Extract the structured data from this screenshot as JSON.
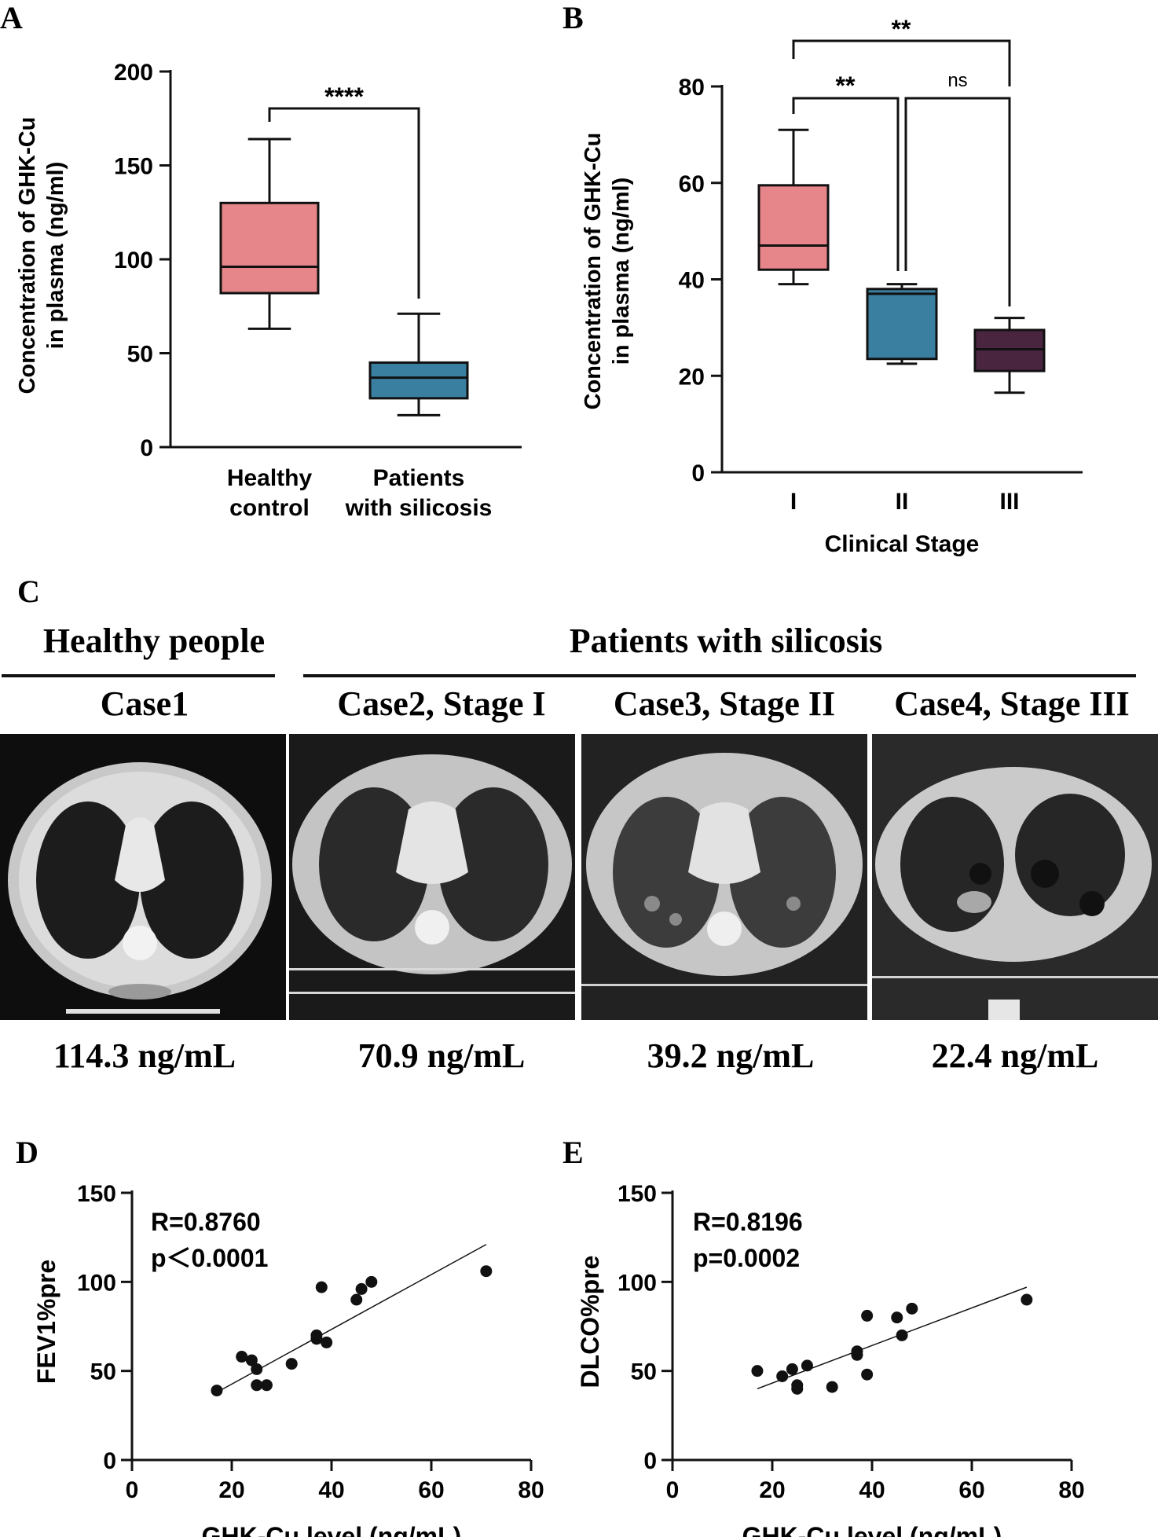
{
  "panels": {
    "A": {
      "letter": "A",
      "chart_data": {
        "type": "box",
        "ylabel_line1": "Concentration of GHK-Cu",
        "ylabel_line2": "in plasma (ng/ml)",
        "ylim": [
          0,
          200
        ],
        "ticks": [
          "0",
          "50",
          "100",
          "150",
          "200"
        ],
        "boxes": [
          {
            "label_line1": "Healthy",
            "label_line2": "control",
            "min": 63,
            "q1": 82,
            "median": 96,
            "q3": 130,
            "max": 164,
            "color": "#e6868a"
          },
          {
            "label_line1": "Patients",
            "label_line2": "with silicosis",
            "min": 17,
            "q1": 26,
            "median": 37,
            "q3": 45,
            "max": 71,
            "color": "#3a7ea0"
          }
        ],
        "significance": [
          {
            "from": 0,
            "to": 1,
            "label": "****"
          }
        ]
      }
    },
    "B": {
      "letter": "B",
      "chart_data": {
        "type": "box",
        "ylabel_line1": "Concentration of GHK-Cu",
        "ylabel_line2": "in plasma (ng/ml)",
        "xlabel": "Clinical Stage",
        "ylim": [
          0,
          80
        ],
        "ticks": [
          "0",
          "20",
          "40",
          "60",
          "80"
        ],
        "boxes": [
          {
            "label": "I",
            "min": 39,
            "q1": 42,
            "median": 47,
            "q3": 59.5,
            "max": 71,
            "color": "#e6868a"
          },
          {
            "label": "II",
            "min": 22.5,
            "q1": 23.5,
            "median": 37,
            "q3": 38,
            "max": 39,
            "color": "#3a7ea0"
          },
          {
            "label": "III",
            "min": 16.5,
            "q1": 21,
            "median": 25.5,
            "q3": 29.5,
            "max": 32,
            "color": "#4a2540"
          }
        ],
        "significance": [
          {
            "from": 0,
            "to": 1,
            "label": "**"
          },
          {
            "from": 1,
            "to": 2,
            "label": "ns"
          },
          {
            "from": 0,
            "to": 2,
            "label": "**"
          }
        ]
      }
    },
    "C": {
      "letter": "C",
      "group_healthy": "Healthy people",
      "group_patients": "Patients with silicosis",
      "cases": [
        {
          "title": "Case1",
          "value": "114.3 ng/mL"
        },
        {
          "title": "Case2, Stage I",
          "value": "70.9 ng/mL"
        },
        {
          "title": "Case3, Stage II",
          "value": "39.2 ng/mL"
        },
        {
          "title": "Case4, Stage III",
          "value": "22.4 ng/mL"
        }
      ]
    },
    "D": {
      "letter": "D",
      "chart_data": {
        "type": "scatter",
        "ylabel": "FEV1%pre",
        "xlabel": "GHK-Cu level (ng/mL)",
        "xlim": [
          0,
          80
        ],
        "ylim": [
          0,
          150
        ],
        "xticks": [
          "0",
          "20",
          "40",
          "60",
          "80"
        ],
        "yticks": [
          "0",
          "50",
          "100",
          "150"
        ],
        "stat_r": "R=0.8760",
        "stat_p": "p＜0.0001",
        "points": [
          [
            17,
            39
          ],
          [
            22,
            58
          ],
          [
            24,
            56
          ],
          [
            25,
            51
          ],
          [
            25,
            42
          ],
          [
            27,
            42
          ],
          [
            32,
            54
          ],
          [
            37,
            70
          ],
          [
            37,
            68
          ],
          [
            38,
            97
          ],
          [
            39,
            66
          ],
          [
            45,
            90
          ],
          [
            46,
            96
          ],
          [
            48,
            100
          ],
          [
            71,
            106
          ]
        ],
        "fit": [
          [
            17,
            38
          ],
          [
            71,
            121
          ]
        ]
      }
    },
    "E": {
      "letter": "E",
      "chart_data": {
        "type": "scatter",
        "ylabel": "DLCO%pre",
        "xlabel": "GHK-Cu level (ng/mL)",
        "xlim": [
          0,
          80
        ],
        "ylim": [
          0,
          150
        ],
        "xticks": [
          "0",
          "20",
          "40",
          "60",
          "80"
        ],
        "yticks": [
          "0",
          "50",
          "100",
          "150"
        ],
        "stat_r": "R=0.8196",
        "stat_p": "p=0.0002",
        "points": [
          [
            17,
            50
          ],
          [
            22,
            47
          ],
          [
            24,
            51
          ],
          [
            25,
            42
          ],
          [
            25,
            40
          ],
          [
            27,
            53
          ],
          [
            32,
            41
          ],
          [
            37,
            61
          ],
          [
            37,
            59
          ],
          [
            39,
            81
          ],
          [
            39,
            48
          ],
          [
            45,
            80
          ],
          [
            46,
            70
          ],
          [
            48,
            85
          ],
          [
            71,
            90
          ]
        ],
        "fit": [
          [
            17,
            40
          ],
          [
            71,
            97
          ]
        ]
      }
    }
  }
}
